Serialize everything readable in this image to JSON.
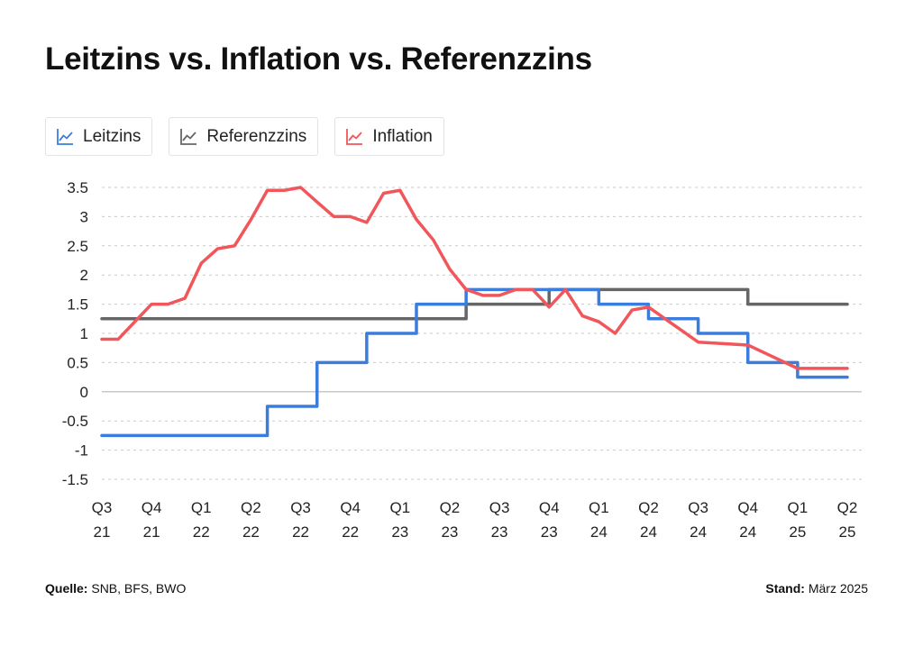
{
  "title": "Leitzins vs. Inflation vs. Referenzzins",
  "legend": [
    {
      "label": "Leitzins",
      "color": "#3b7ddd",
      "icon": "line-chart-icon"
    },
    {
      "label": "Referenzzins",
      "color": "#666666",
      "icon": "line-chart-icon"
    },
    {
      "label": "Inflation",
      "color": "#f0565a",
      "icon": "line-chart-icon"
    }
  ],
  "footer": {
    "source_label": "Quelle:",
    "source_value": "SNB, BFS, BWO",
    "date_label": "Stand:",
    "date_value": "März 2025"
  },
  "chart_data": {
    "type": "line",
    "title": "Leitzins vs. Inflation vs. Referenzzins",
    "x_ticks": [
      {
        "q": "Q3",
        "y": "21"
      },
      {
        "q": "Q4",
        "y": "21"
      },
      {
        "q": "Q1",
        "y": "22"
      },
      {
        "q": "Q2",
        "y": "22"
      },
      {
        "q": "Q3",
        "y": "22"
      },
      {
        "q": "Q4",
        "y": "22"
      },
      {
        "q": "Q1",
        "y": "23"
      },
      {
        "q": "Q2",
        "y": "23"
      },
      {
        "q": "Q3",
        "y": "23"
      },
      {
        "q": "Q4",
        "y": "23"
      },
      {
        "q": "Q1",
        "y": "24"
      },
      {
        "q": "Q2",
        "y": "24"
      },
      {
        "q": "Q3",
        "y": "24"
      },
      {
        "q": "Q4",
        "y": "24"
      },
      {
        "q": "Q1",
        "y": "25"
      },
      {
        "q": "Q2",
        "y": "25"
      }
    ],
    "y_ticks": [
      "3.5",
      "3",
      "2.5",
      "2",
      "1.5",
      "1",
      "0.5",
      "0",
      "-0.5",
      "-1",
      "-1.5"
    ],
    "ylim": [
      -1.5,
      3.5
    ],
    "xlim": [
      0,
      15
    ],
    "grid": true,
    "series": [
      {
        "name": "Leitzins",
        "color": "#3b7ddd",
        "step": true,
        "points": [
          [
            0,
            -0.75
          ],
          [
            3.33,
            -0.25
          ],
          [
            4.33,
            0.5
          ],
          [
            5.33,
            1.0
          ],
          [
            6.33,
            1.5
          ],
          [
            7.33,
            1.75
          ],
          [
            10.0,
            1.5
          ],
          [
            11.0,
            1.25
          ],
          [
            12.0,
            1.0
          ],
          [
            13.0,
            0.5
          ],
          [
            14.0,
            0.25
          ],
          [
            15.0,
            0.25
          ]
        ]
      },
      {
        "name": "Referenzzins",
        "color": "#666666",
        "step": true,
        "points": [
          [
            0,
            1.25
          ],
          [
            7.33,
            1.5
          ],
          [
            9.0,
            1.75
          ],
          [
            13.0,
            1.5
          ],
          [
            15.0,
            1.5
          ]
        ]
      },
      {
        "name": "Inflation",
        "color": "#f0565a",
        "step": false,
        "points": [
          [
            0,
            0.9
          ],
          [
            0.33,
            0.9
          ],
          [
            1.0,
            1.5
          ],
          [
            1.33,
            1.5
          ],
          [
            1.67,
            1.6
          ],
          [
            2.0,
            2.2
          ],
          [
            2.33,
            2.45
          ],
          [
            2.67,
            2.5
          ],
          [
            3.0,
            2.95
          ],
          [
            3.33,
            3.45
          ],
          [
            3.67,
            3.45
          ],
          [
            4.0,
            3.5
          ],
          [
            4.33,
            3.25
          ],
          [
            4.67,
            3.0
          ],
          [
            5.0,
            3.0
          ],
          [
            5.33,
            2.9
          ],
          [
            5.67,
            3.4
          ],
          [
            6.0,
            3.45
          ],
          [
            6.33,
            2.95
          ],
          [
            6.67,
            2.6
          ],
          [
            7.0,
            2.1
          ],
          [
            7.33,
            1.75
          ],
          [
            7.67,
            1.65
          ],
          [
            8.0,
            1.65
          ],
          [
            8.33,
            1.75
          ],
          [
            8.67,
            1.75
          ],
          [
            9.0,
            1.45
          ],
          [
            9.33,
            1.75
          ],
          [
            9.67,
            1.3
          ],
          [
            10.0,
            1.2
          ],
          [
            10.33,
            1.0
          ],
          [
            10.67,
            1.4
          ],
          [
            11.0,
            1.45
          ],
          [
            11.5,
            1.15
          ],
          [
            12.0,
            0.85
          ],
          [
            13.0,
            0.8
          ],
          [
            13.5,
            0.6
          ],
          [
            14.0,
            0.4
          ],
          [
            15.0,
            0.4
          ]
        ]
      }
    ]
  }
}
